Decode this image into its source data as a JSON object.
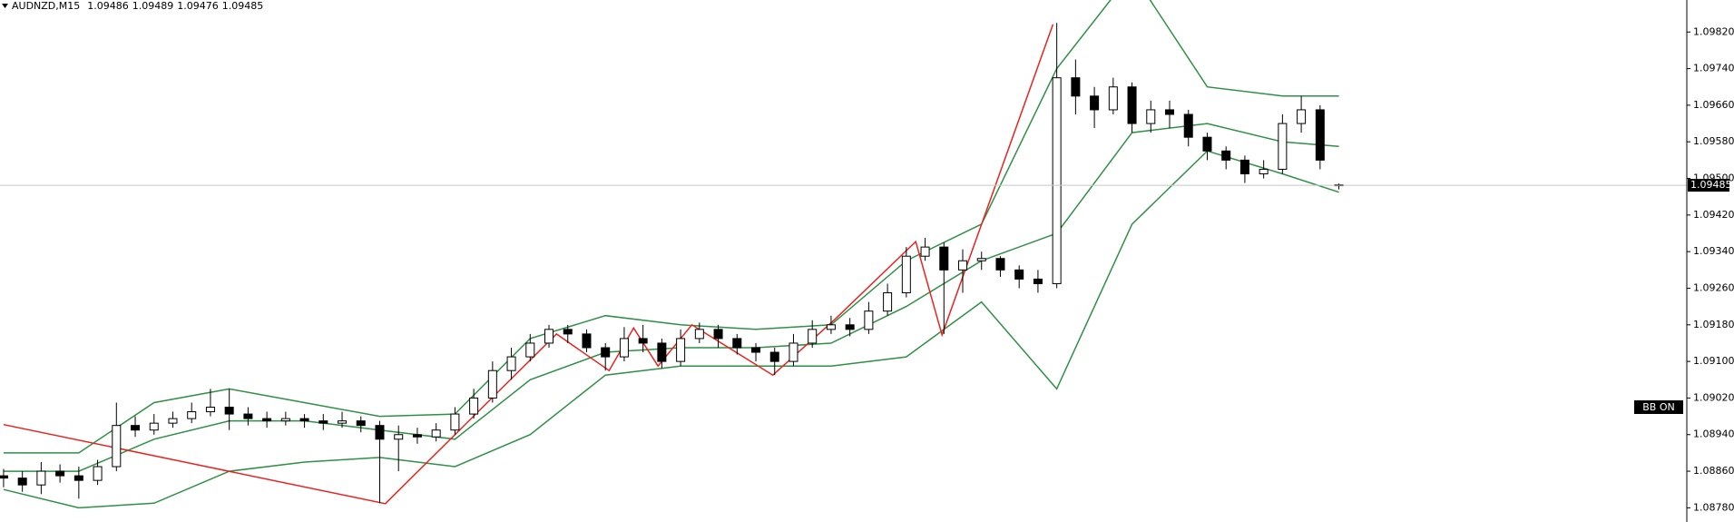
{
  "chart_data": {
    "type": "candlestick",
    "symbol": "AUDNZD,M15",
    "ohlc": [
      1.09486,
      1.09489,
      1.09476,
      1.09485
    ],
    "up_color": "#ffffff",
    "down_color": "#000000",
    "candles": [
      [
        1.0885,
        1.08865,
        1.08825,
        1.08845
      ],
      [
        1.08845,
        1.0886,
        1.08815,
        1.0883
      ],
      [
        1.0883,
        1.0888,
        1.0881,
        1.0886
      ],
      [
        1.0886,
        1.08875,
        1.08835,
        1.0885
      ],
      [
        1.0885,
        1.0887,
        1.088,
        1.0884
      ],
      [
        1.0884,
        1.08885,
        1.0883,
        1.0887
      ],
      [
        1.0887,
        1.0901,
        1.0886,
        1.0896
      ],
      [
        1.0896,
        1.0898,
        1.08935,
        1.0895
      ],
      [
        1.0895,
        1.08985,
        1.0894,
        1.08965
      ],
      [
        1.08965,
        1.0899,
        1.08955,
        1.08975
      ],
      [
        1.08975,
        1.0901,
        1.08965,
        1.0899
      ],
      [
        1.0899,
        1.0904,
        1.0898,
        1.09
      ],
      [
        1.09,
        1.0904,
        1.0895,
        1.08985
      ],
      [
        1.08985,
        1.09,
        1.0896,
        1.08975
      ],
      [
        1.08975,
        1.0899,
        1.08955,
        1.0897
      ],
      [
        1.0897,
        1.0899,
        1.0896,
        1.08975
      ],
      [
        1.08975,
        1.08985,
        1.08955,
        1.0897
      ],
      [
        1.0897,
        1.08985,
        1.0895,
        1.08965
      ],
      [
        1.08965,
        1.0899,
        1.08955,
        1.0897
      ],
      [
        1.0897,
        1.0898,
        1.08945,
        1.0896
      ],
      [
        1.0896,
        1.0897,
        1.0879,
        1.0893
      ],
      [
        1.0893,
        1.0896,
        1.0886,
        1.0894
      ],
      [
        1.0894,
        1.08955,
        1.0892,
        1.08935
      ],
      [
        1.08935,
        1.08965,
        1.08925,
        1.0895
      ],
      [
        1.0895,
        1.09,
        1.0894,
        1.08985
      ],
      [
        1.08985,
        1.0904,
        1.08975,
        1.0902
      ],
      [
        1.0902,
        1.091,
        1.0901,
        1.0908
      ],
      [
        1.0908,
        1.0913,
        1.0906,
        1.0911
      ],
      [
        1.0911,
        1.0916,
        1.091,
        1.0914
      ],
      [
        1.0914,
        1.0918,
        1.0913,
        1.0917
      ],
      [
        1.0917,
        1.0918,
        1.0914,
        1.0916
      ],
      [
        1.0916,
        1.0917,
        1.0912,
        1.0913
      ],
      [
        1.0913,
        1.0914,
        1.0908,
        1.0911
      ],
      [
        1.0911,
        1.09175,
        1.091,
        1.0915
      ],
      [
        1.0915,
        1.0918,
        1.0912,
        1.0914
      ],
      [
        1.0914,
        1.0915,
        1.09085,
        1.091
      ],
      [
        1.091,
        1.0917,
        1.0909,
        1.0915
      ],
      [
        1.0915,
        1.09185,
        1.0914,
        1.0917
      ],
      [
        1.0917,
        1.0918,
        1.0913,
        1.0915
      ],
      [
        1.0915,
        1.0916,
        1.09115,
        1.0913
      ],
      [
        1.0913,
        1.0914,
        1.091,
        1.0912
      ],
      [
        1.0912,
        1.0913,
        1.0907,
        1.091
      ],
      [
        1.091,
        1.0916,
        1.0909,
        1.0914
      ],
      [
        1.0914,
        1.0919,
        1.0913,
        1.0917
      ],
      [
        1.0917,
        1.092,
        1.0916,
        1.0918
      ],
      [
        1.0918,
        1.09195,
        1.09155,
        1.0917
      ],
      [
        1.0917,
        1.0923,
        1.0916,
        1.0921
      ],
      [
        1.0921,
        1.0927,
        1.092,
        1.0925
      ],
      [
        1.0925,
        1.0935,
        1.0924,
        1.0933
      ],
      [
        1.0933,
        1.0937,
        1.0932,
        1.0935
      ],
      [
        1.0935,
        1.0936,
        1.0916,
        1.093
      ],
      [
        1.093,
        1.09345,
        1.0925,
        1.0932
      ],
      [
        1.0932,
        1.0934,
        1.093,
        1.09325
      ],
      [
        1.09325,
        1.0933,
        1.09285,
        1.093
      ],
      [
        1.093,
        1.0931,
        1.0926,
        1.0928
      ],
      [
        1.0928,
        1.093,
        1.0925,
        1.0927
      ],
      [
        1.0927,
        1.0984,
        1.0926,
        1.0972
      ],
      [
        1.0972,
        1.0976,
        1.0964,
        1.0968
      ],
      [
        1.0968,
        1.097,
        1.0961,
        1.0965
      ],
      [
        1.0965,
        1.0972,
        1.0964,
        1.097
      ],
      [
        1.097,
        1.0971,
        1.096,
        1.0962
      ],
      [
        1.0962,
        1.0967,
        1.096,
        1.0965
      ],
      [
        1.0965,
        1.0967,
        1.0961,
        1.0964
      ],
      [
        1.0964,
        1.0965,
        1.0957,
        1.0959
      ],
      [
        1.0959,
        1.096,
        1.0954,
        1.0956
      ],
      [
        1.0956,
        1.0957,
        1.0952,
        1.0954
      ],
      [
        1.0954,
        1.0955,
        1.0949,
        1.0951
      ],
      [
        1.0951,
        1.0954,
        1.095,
        1.0952
      ],
      [
        1.0952,
        1.0964,
        1.0951,
        1.0962
      ],
      [
        1.0962,
        1.0968,
        1.096,
        1.0965
      ],
      [
        1.0965,
        1.0966,
        1.0952,
        1.0954
      ],
      [
        1.09486,
        1.09489,
        1.09476,
        1.09485
      ]
    ],
    "bands": [
      {
        "color": "#2f8f46",
        "x": [
          0,
          4,
          8,
          12,
          16,
          20,
          24,
          28,
          32,
          36,
          40,
          44,
          48,
          52,
          56,
          60,
          64,
          68,
          71
        ],
        "values": [
          1.089,
          1.089,
          1.0901,
          1.0904,
          1.0901,
          1.0898,
          1.08985,
          1.0915,
          1.092,
          1.0918,
          1.0917,
          1.0918,
          1.0932,
          1.094,
          1.0974,
          1.0995,
          1.097,
          1.0968,
          1.0968
        ]
      },
      {
        "color": "#2f8f46",
        "x": [
          0,
          4,
          8,
          12,
          16,
          20,
          24,
          28,
          32,
          36,
          40,
          44,
          48,
          52,
          56,
          60,
          64,
          68,
          71
        ],
        "values": [
          1.0886,
          1.0886,
          1.0893,
          1.0897,
          1.0897,
          1.0895,
          1.0893,
          1.0906,
          1.0912,
          1.0913,
          1.0913,
          1.0914,
          1.0922,
          1.0932,
          1.0938,
          1.096,
          1.0962,
          1.0958,
          1.0957
        ]
      },
      {
        "color": "#2f8f46",
        "x": [
          0,
          4,
          8,
          12,
          16,
          20,
          24,
          28,
          32,
          36,
          40,
          44,
          48,
          52,
          56,
          60,
          64,
          68,
          71
        ],
        "values": [
          1.0882,
          1.0878,
          1.0879,
          1.0886,
          1.0888,
          1.0889,
          1.0887,
          1.0894,
          1.0907,
          1.0909,
          1.0909,
          1.0909,
          1.0911,
          1.0923,
          1.0904,
          1.094,
          1.0956,
          1.0951,
          1.0947
        ]
      }
    ],
    "zigzag": {
      "color": "#e8231f",
      "x": [
        0,
        20.3,
        29.4,
        32.2,
        33.5,
        34.8,
        36.6,
        40.9,
        44.2,
        48.5,
        49.9,
        55.8
      ],
      "values": [
        1.08962,
        1.08789,
        1.0916,
        1.0908,
        1.09173,
        1.0909,
        1.0918,
        1.0907,
        1.09192,
        1.09362,
        1.09158,
        1.09837
      ]
    },
    "last_price": 1.09485,
    "indicator_label": "BB ON",
    "xlim": [
      -0.19,
      89.5
    ],
    "ylim": [
      1.08749,
      1.0989
    ],
    "yticks": [
      {
        "value": 1.0982,
        "label": "1.09820"
      },
      {
        "value": 1.0974,
        "label": "1.09740"
      },
      {
        "value": 1.0966,
        "label": "1.09660"
      },
      {
        "value": 1.0958,
        "label": "1.09580"
      },
      {
        "value": 1.095,
        "label": "1.09500"
      },
      {
        "value": 1.0942,
        "label": "1.09420"
      },
      {
        "value": 1.0934,
        "label": "1.09340"
      },
      {
        "value": 1.0926,
        "label": "1.09260"
      },
      {
        "value": 1.0918,
        "label": "1.09180"
      },
      {
        "value": 1.091,
        "label": "1.09100"
      },
      {
        "value": 1.0902,
        "label": "1.09020"
      },
      {
        "value": 1.0894,
        "label": "1.08940"
      },
      {
        "value": 1.0886,
        "label": "1.08860"
      },
      {
        "value": 1.0878,
        "label": "1.08780"
      }
    ]
  }
}
